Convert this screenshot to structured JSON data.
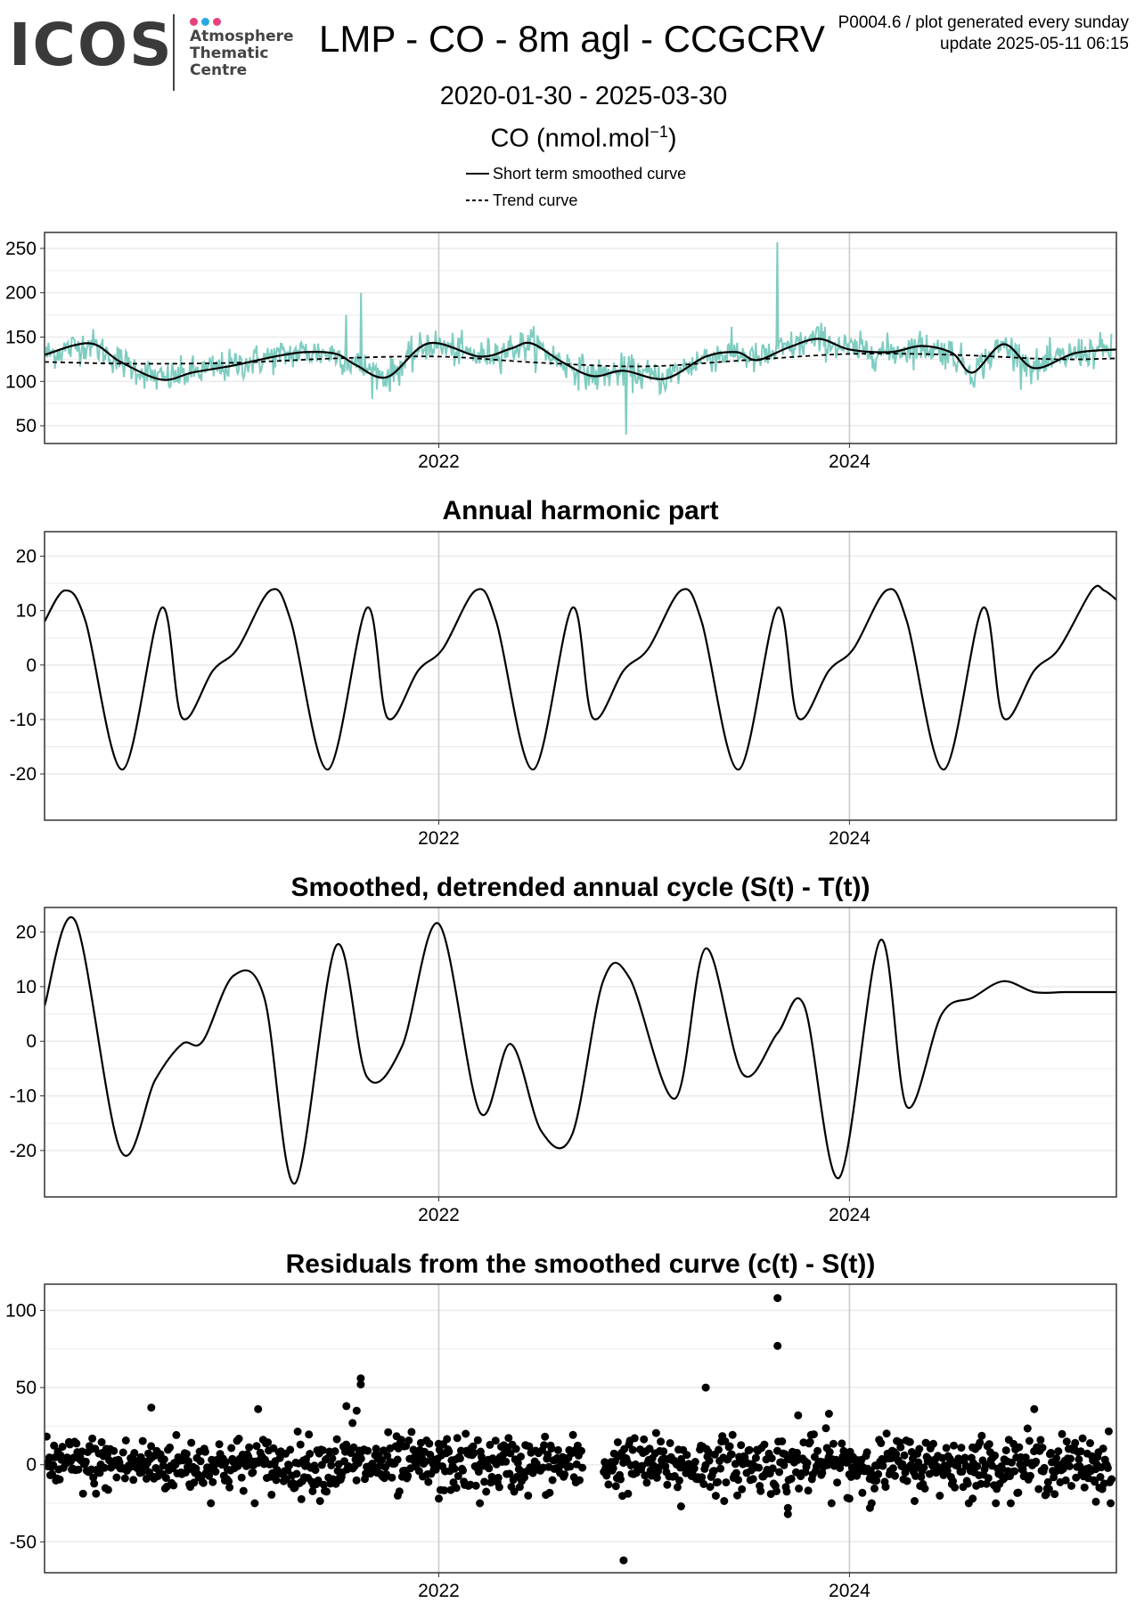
{
  "header": {
    "logo": {
      "wordmark": "ICOS",
      "line1": "Atmosphere",
      "line2": "Thematic",
      "line3": "Centre",
      "dot_colors": [
        "#e8417b",
        "#2aa7e3",
        "#e8417b"
      ]
    },
    "title": "LMP - CO - 8m agl - CCGCRV",
    "plot_id": "P0004.6 / plot generated every sunday",
    "update": "update  2025-05-11 06:15",
    "date_range": "2020-01-30 - 2025-03-30",
    "unit_base": "CO (nmol.mol",
    "unit_exp": "−1",
    "unit_close": ")"
  },
  "legend": {
    "smoothed": "Short term smoothed curve",
    "trend": "Trend curve"
  },
  "colors": {
    "raw": "#7fcdc1",
    "curve": "#000000",
    "grid_major": "#cccccc",
    "grid_minor": "#ebebeb",
    "frame": "#333333"
  },
  "chart_data": [
    {
      "type": "line",
      "title": "",
      "xlim": [
        2020.08,
        2025.3
      ],
      "ylim": [
        30,
        268
      ],
      "yticks": [
        50,
        100,
        150,
        200,
        250
      ],
      "xticks": [
        2022,
        2024
      ],
      "xtick_labels": [
        "2022",
        "2024"
      ],
      "grid": true,
      "series": [
        {
          "name": "Short term smoothed curve",
          "style": "solid",
          "x": [
            2020.08,
            2020.3,
            2020.45,
            2020.65,
            2020.8,
            2021.0,
            2021.2,
            2021.35,
            2021.5,
            2021.6,
            2021.75,
            2021.95,
            2022.2,
            2022.35,
            2022.45,
            2022.6,
            2022.75,
            2022.9,
            2023.1,
            2023.3,
            2023.45,
            2023.55,
            2023.7,
            2023.85,
            2024.0,
            2024.2,
            2024.35,
            2024.5,
            2024.6,
            2024.75,
            2024.9,
            2025.1,
            2025.3
          ],
          "y": [
            130,
            143,
            122,
            102,
            110,
            118,
            128,
            133,
            131,
            118,
            105,
            143,
            128,
            137,
            143,
            122,
            106,
            112,
            103,
            128,
            133,
            124,
            138,
            148,
            136,
            133,
            140,
            132,
            110,
            142,
            115,
            132,
            136
          ]
        },
        {
          "name": "Trend curve",
          "style": "dashed",
          "x": [
            2020.08,
            2020.5,
            2021.0,
            2021.5,
            2022.0,
            2022.5,
            2023.0,
            2023.5,
            2024.0,
            2024.5,
            2025.0,
            2025.3
          ],
          "y": [
            122,
            120,
            121,
            126,
            128,
            121,
            117,
            124,
            131,
            130,
            125,
            126
          ]
        }
      ]
    },
    {
      "type": "line",
      "title": "Annual harmonic part",
      "xlim": [
        2020.08,
        2025.3
      ],
      "ylim": [
        -28.5,
        24.5
      ],
      "yticks": [
        -20,
        -10,
        0,
        10,
        20
      ],
      "xticks": [
        2022,
        2024
      ],
      "xtick_labels": [
        "2022",
        "2024"
      ],
      "grid": true,
      "series": [
        {
          "name": "",
          "style": "solid",
          "x": [
            2020.08,
            2020.18,
            2020.28,
            2020.46,
            2020.65,
            2020.75,
            2020.9,
            2021.02,
            2021.18,
            2021.28,
            2021.46,
            2021.65,
            2021.75,
            2021.9,
            2022.02,
            2022.18,
            2022.28,
            2022.46,
            2022.65,
            2022.75,
            2022.9,
            2023.02,
            2023.18,
            2023.28,
            2023.46,
            2023.65,
            2023.75,
            2023.9,
            2024.02,
            2024.18,
            2024.28,
            2024.46,
            2024.65,
            2024.75,
            2024.9,
            2025.02,
            2025.18,
            2025.24,
            2025.3
          ],
          "y": [
            8,
            13.7,
            8,
            -19.2,
            10.5,
            -9.7,
            -1,
            3,
            13.7,
            8,
            -19.2,
            10.5,
            -9.7,
            -1,
            3,
            13.7,
            8,
            -19.2,
            10.5,
            -9.7,
            -1,
            3,
            13.7,
            8,
            -19.2,
            10.5,
            -9.7,
            -1,
            3,
            13.7,
            8,
            -19.2,
            10.5,
            -9.7,
            -1,
            3,
            13.7,
            13.7,
            12
          ]
        }
      ]
    },
    {
      "type": "line",
      "title": "Smoothed, detrended annual cycle (S(t) - T(t))",
      "xlim": [
        2020.08,
        2025.3
      ],
      "ylim": [
        -28.5,
        24.5
      ],
      "yticks": [
        -20,
        -10,
        0,
        10,
        20
      ],
      "xticks": [
        2022,
        2024
      ],
      "xtick_labels": [
        "2022",
        "2024"
      ],
      "grid": true,
      "series": [
        {
          "name": "",
          "style": "solid",
          "x": [
            2020.08,
            2020.23,
            2020.45,
            2020.62,
            2020.75,
            2020.85,
            2021.0,
            2021.15,
            2021.3,
            2021.5,
            2021.65,
            2021.82,
            2022.0,
            2022.2,
            2022.35,
            2022.5,
            2022.65,
            2022.8,
            2022.93,
            2023.15,
            2023.3,
            2023.48,
            2023.65,
            2023.78,
            2023.95,
            2024.15,
            2024.28,
            2024.45,
            2024.6,
            2024.75,
            2024.9,
            2025.05,
            2025.2,
            2025.3
          ],
          "y": [
            6.5,
            22,
            -20,
            -7,
            -0.5,
            0,
            12,
            8,
            -26,
            17.5,
            -6.5,
            -1,
            21.5,
            -13,
            -0.5,
            -16.5,
            -17,
            11,
            11.5,
            -10.5,
            17,
            -6,
            1.5,
            6.5,
            -25,
            18.5,
            -12,
            5,
            8,
            11,
            9,
            9,
            9,
            9
          ]
        }
      ]
    },
    {
      "type": "scatter",
      "title": "Residuals from the smoothed curve (c(t) - S(t))",
      "xlim": [
        2020.08,
        2025.3
      ],
      "ylim": [
        -70,
        117
      ],
      "yticks": [
        -50,
        0,
        50,
        100
      ],
      "xticks": [
        2022,
        2024
      ],
      "xtick_labels": [
        "2022",
        "2024"
      ],
      "grid": true,
      "series": [
        {
          "name": "",
          "style": "points",
          "points": [
            [
              2021.62,
              56
            ],
            [
              2021.62,
              52
            ],
            [
              2021.55,
              38
            ],
            [
              2021.6,
              35
            ],
            [
              2021.58,
              27
            ],
            [
              2023.3,
              50
            ],
            [
              2023.65,
              108
            ],
            [
              2023.65,
              77
            ],
            [
              2022.9,
              -62
            ],
            [
              2020.6,
              37
            ],
            [
              2021.12,
              36
            ],
            [
              2023.9,
              33
            ],
            [
              2023.75,
              32
            ],
            [
              2024.9,
              36
            ],
            [
              2022.0,
              -22
            ],
            [
              2024.1,
              -28
            ],
            [
              2024.0,
              -22
            ],
            [
              2023.7,
              -28
            ],
            [
              2023.7,
              -32
            ],
            [
              2022.2,
              -25
            ],
            [
              2023.18,
              -27
            ],
            [
              2025.2,
              -24
            ],
            [
              2021.8,
              -20
            ],
            [
              2024.6,
              -22
            ]
          ],
          "noise_sd": 9
        }
      ]
    }
  ]
}
